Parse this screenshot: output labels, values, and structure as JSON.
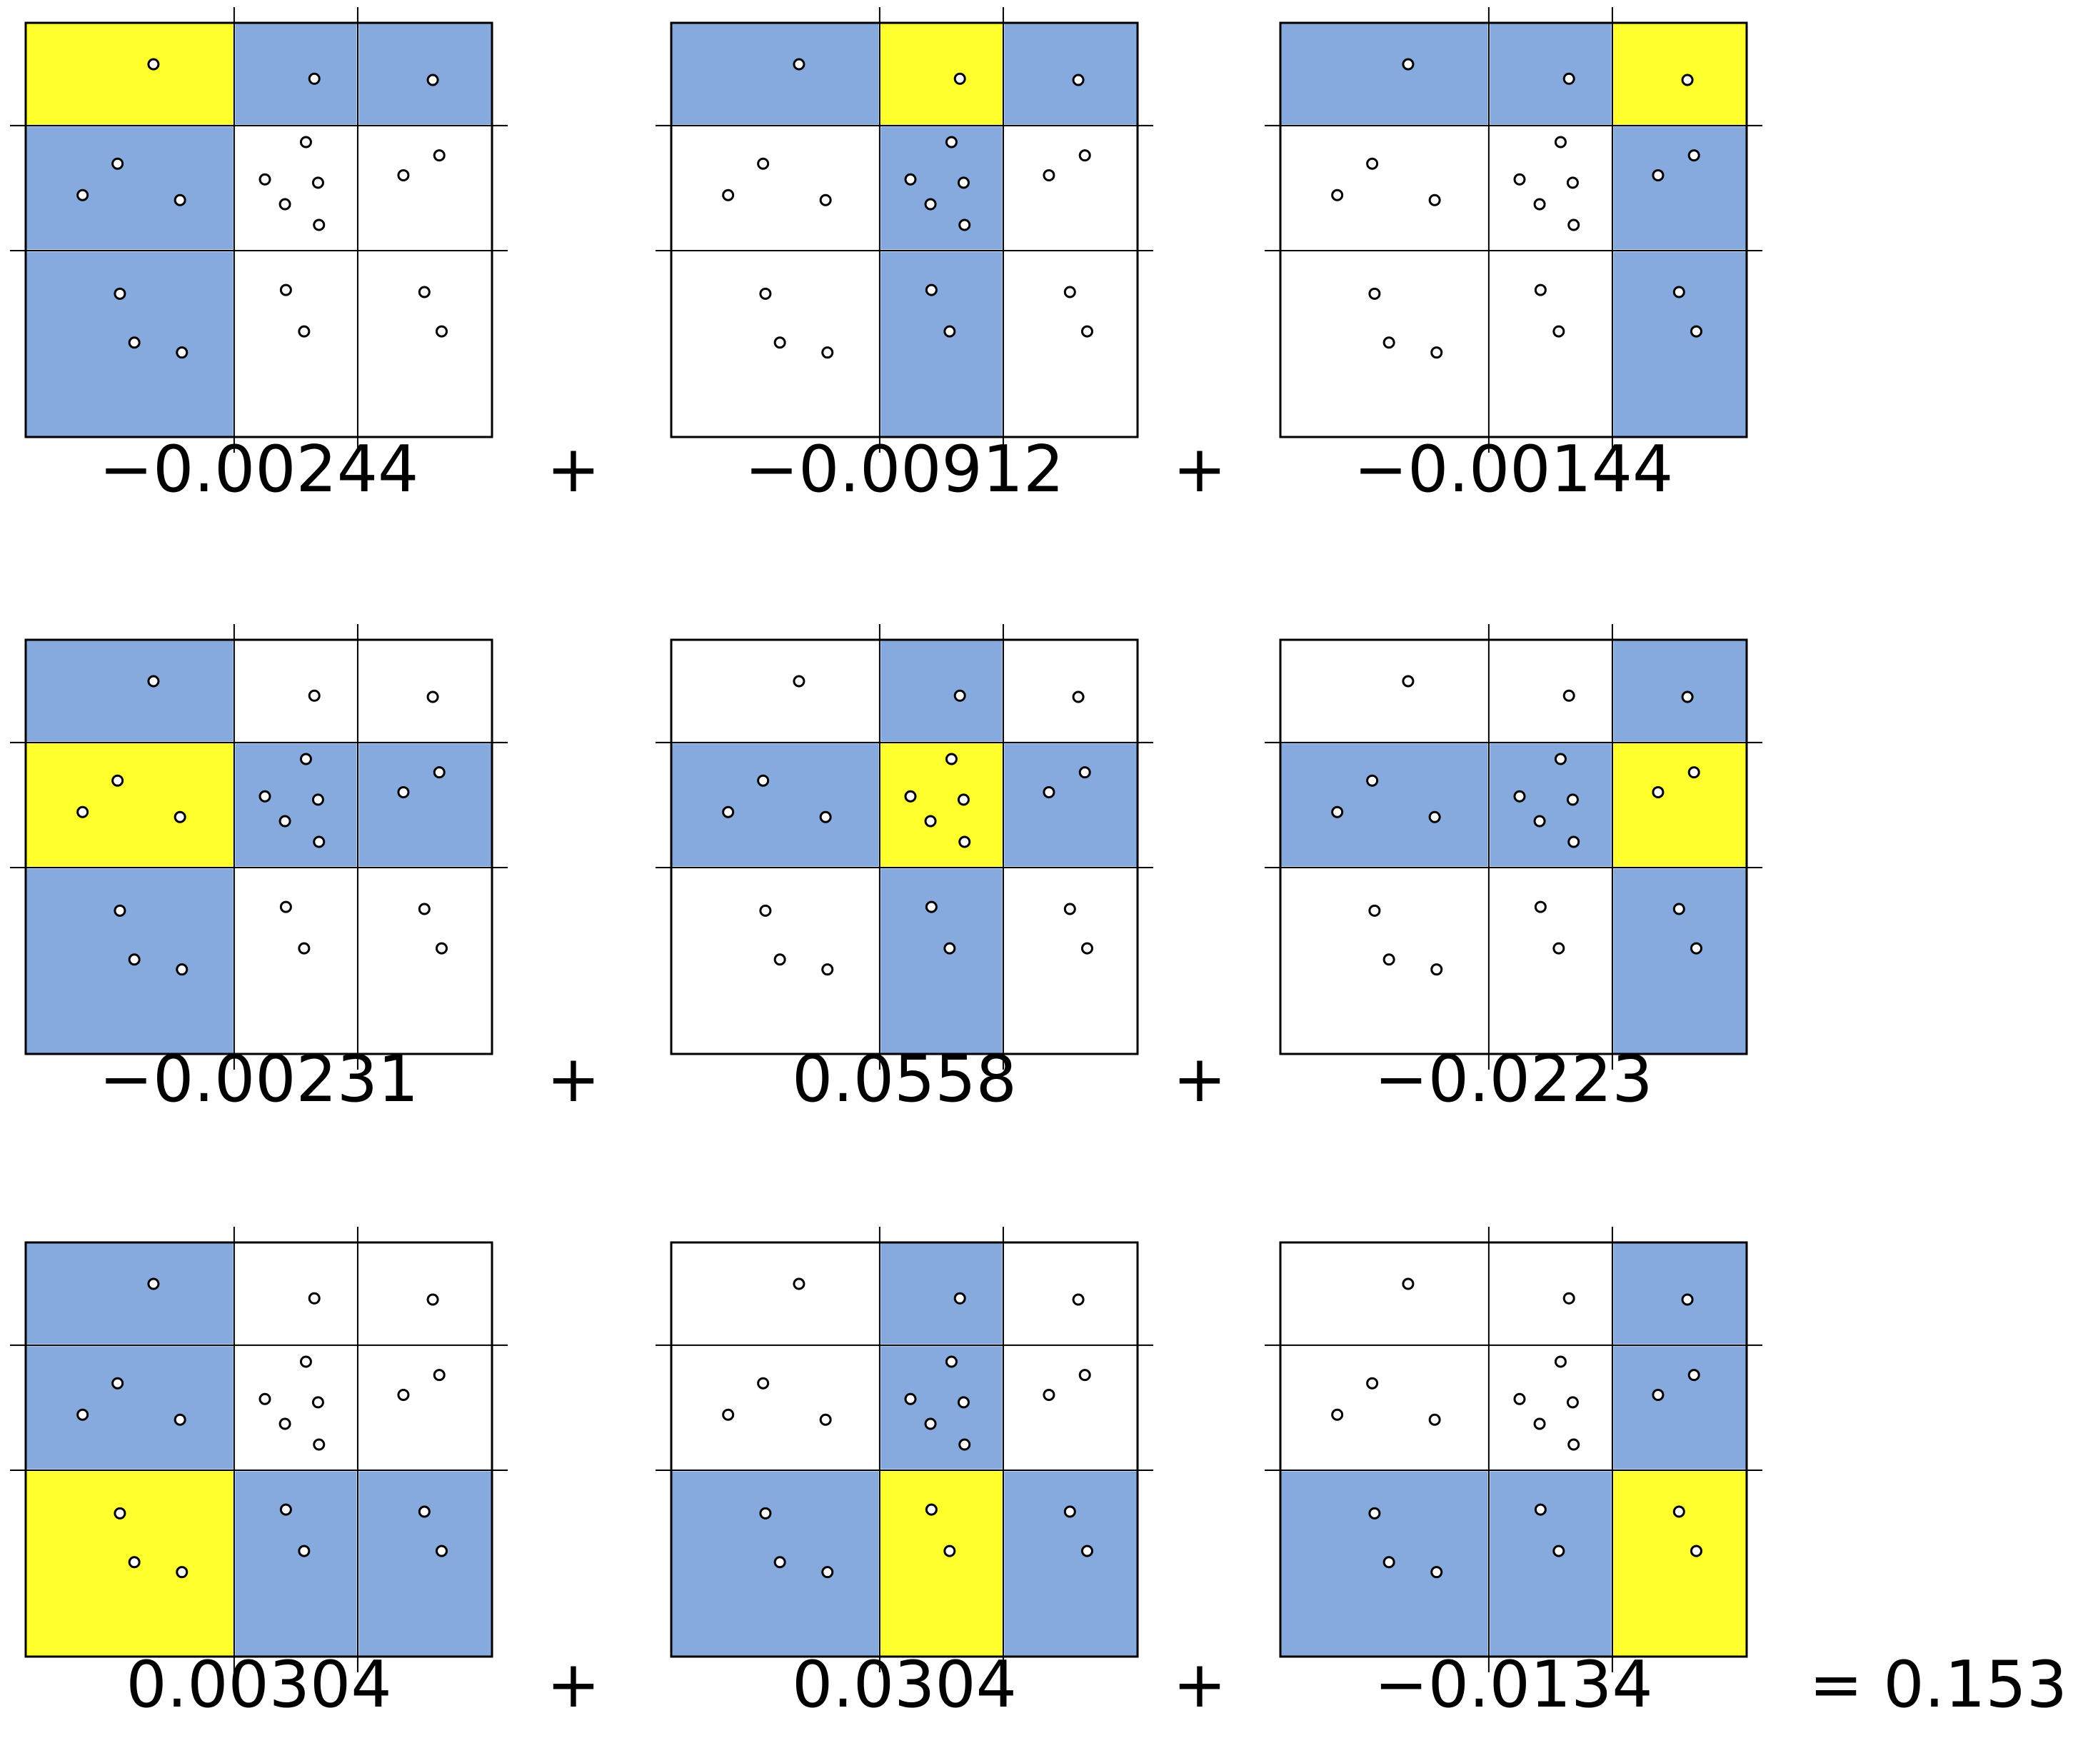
{
  "colors": {
    "focus": "#ffff2e",
    "neighbor": "#86a9de",
    "empty": "#ffffff",
    "line": "#000000",
    "point_fill": "#ffffff",
    "point_stroke": "#000000"
  },
  "grid_split": {
    "x_cuts": [
      0.447,
      0.712
    ],
    "y_cuts": [
      0.248,
      0.55
    ]
  },
  "points": {
    "left": [
      [
        0.274,
        0.1
      ],
      [
        0.197,
        0.34
      ],
      [
        0.122,
        0.416
      ],
      [
        0.331,
        0.428
      ],
      [
        0.202,
        0.654
      ],
      [
        0.233,
        0.772
      ],
      [
        0.335,
        0.796
      ]
    ],
    "middle": [
      [
        0.619,
        0.135
      ],
      [
        0.601,
        0.288
      ],
      [
        0.513,
        0.378
      ],
      [
        0.627,
        0.386
      ],
      [
        0.556,
        0.438
      ],
      [
        0.629,
        0.488
      ],
      [
        0.558,
        0.645
      ],
      [
        0.597,
        0.745
      ]
    ],
    "right": [
      [
        0.873,
        0.138
      ],
      [
        0.887,
        0.32
      ],
      [
        0.81,
        0.368
      ],
      [
        0.855,
        0.65
      ],
      [
        0.892,
        0.745
      ]
    ]
  },
  "panels": [
    {
      "focus": [
        0,
        0
      ],
      "coefficient": "−0.00244",
      "operator": "+"
    },
    {
      "focus": [
        0,
        1
      ],
      "coefficient": "−0.00912",
      "operator": "+"
    },
    {
      "focus": [
        0,
        2
      ],
      "coefficient": "−0.00144",
      "operator": ""
    },
    {
      "focus": [
        1,
        0
      ],
      "coefficient": "−0.00231",
      "operator": "+"
    },
    {
      "focus": [
        1,
        1
      ],
      "coefficient": "0.0558",
      "operator": "+"
    },
    {
      "focus": [
        1,
        2
      ],
      "coefficient": "−0.0223",
      "operator": ""
    },
    {
      "focus": [
        2,
        0
      ],
      "coefficient": "0.00304",
      "operator": "+"
    },
    {
      "focus": [
        2,
        1
      ],
      "coefficient": "0.0304",
      "operator": "+"
    },
    {
      "focus": [
        2,
        2
      ],
      "coefficient": "−0.0134",
      "operator": ""
    }
  ],
  "result": "= 0.153"
}
